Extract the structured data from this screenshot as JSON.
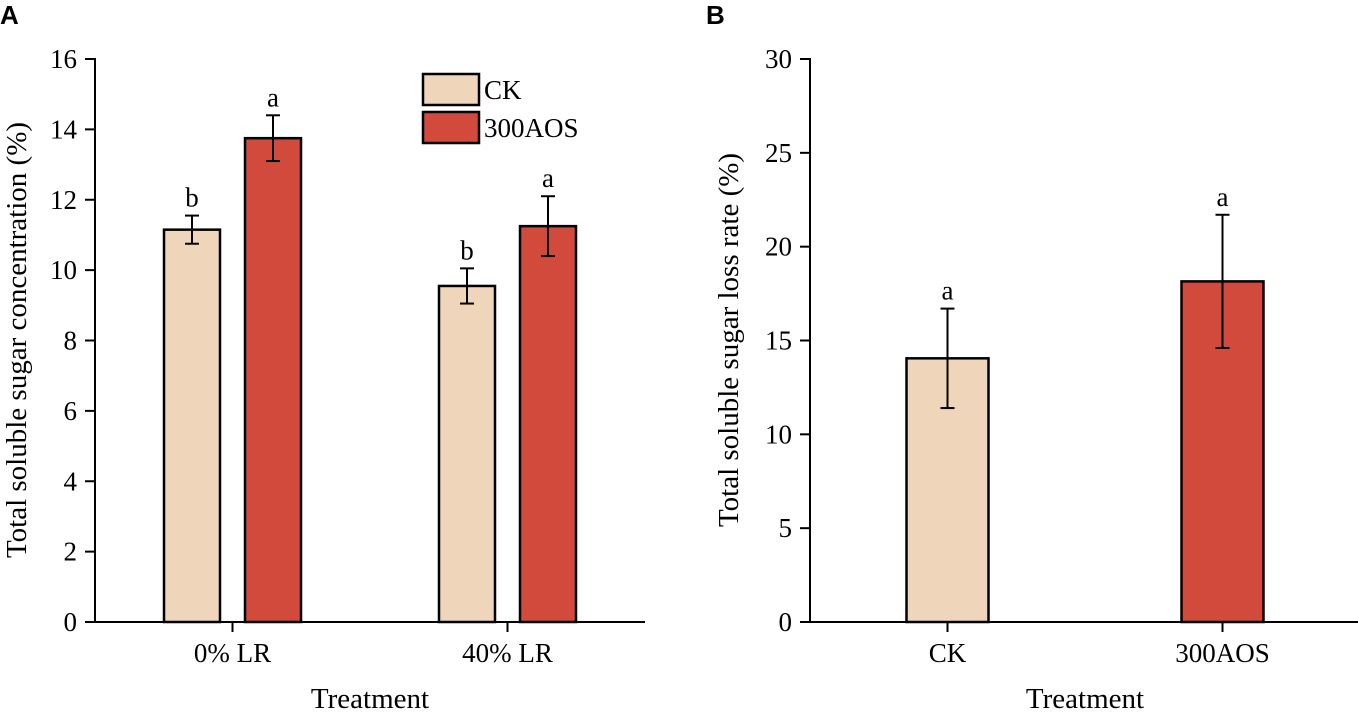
{
  "colors": {
    "ck": "#EFD6BA",
    "aos": "#D14A3C",
    "axis": "#000000"
  },
  "chart_data": [
    {
      "panel_label": "A",
      "type": "bar",
      "title": "",
      "xlabel": "Treatment",
      "ylabel": "Total soluble sugar concentration (%)",
      "ylim": [
        0,
        16
      ],
      "yticks": [
        0,
        2,
        4,
        6,
        8,
        10,
        12,
        14,
        16
      ],
      "ytick_labels": [
        "0",
        "2",
        "4",
        "6",
        "8",
        "10",
        "12",
        "14",
        "16"
      ],
      "categories": [
        "0% LR",
        "40% LR"
      ],
      "legend_position": "top-right",
      "series": [
        {
          "name": "CK",
          "color_key": "ck",
          "values": [
            11.15,
            9.55
          ],
          "errors": [
            0.4,
            0.5
          ],
          "sig_labels": [
            "b",
            "b"
          ]
        },
        {
          "name": "300AOS",
          "color_key": "aos",
          "values": [
            13.75,
            11.25
          ],
          "errors": [
            0.65,
            0.85
          ],
          "sig_labels": [
            "a",
            "a"
          ]
        }
      ]
    },
    {
      "panel_label": "B",
      "type": "bar",
      "title": "",
      "xlabel": "Treatment",
      "ylabel": "Total soluble sugar loss rate (%)",
      "ylim": [
        0,
        30
      ],
      "yticks": [
        0,
        5,
        10,
        15,
        20,
        25,
        30
      ],
      "ytick_labels": [
        "0",
        "5",
        "10",
        "15",
        "20",
        "25",
        "30"
      ],
      "categories": [
        "CK",
        "300AOS"
      ],
      "values": [
        14.05,
        18.15
      ],
      "errors": [
        2.65,
        3.55
      ],
      "sig_labels": [
        "a",
        "a"
      ],
      "bar_color_keys": [
        "ck",
        "aos"
      ]
    }
  ]
}
